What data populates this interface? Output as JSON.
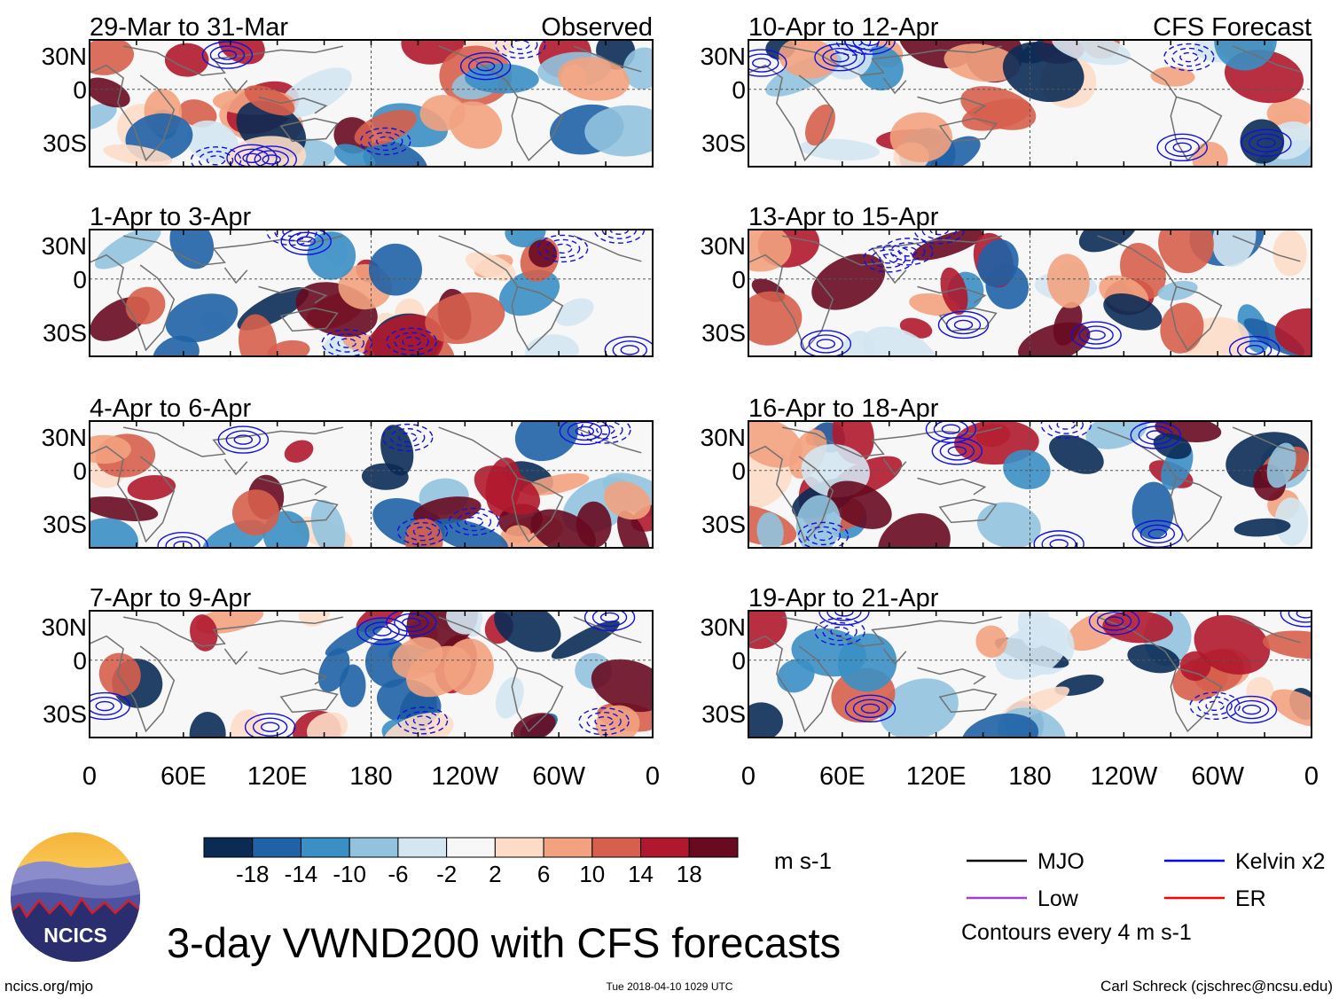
{
  "chart_data": {
    "type": "heatmap",
    "title": "3-day VWND200 with CFS forecasts",
    "variable": "VWND200",
    "panels_left": [
      {
        "title": "29-Mar to 31-Mar",
        "label": "Observed"
      },
      {
        "title": "1-Apr to 3-Apr",
        "label": ""
      },
      {
        "title": "4-Apr to 6-Apr",
        "label": ""
      },
      {
        "title": "7-Apr to 9-Apr",
        "label": ""
      }
    ],
    "panels_right": [
      {
        "title": "10-Apr to 12-Apr",
        "label": "CFS Forecast"
      },
      {
        "title": "13-Apr to 15-Apr",
        "label": ""
      },
      {
        "title": "16-Apr to 18-Apr",
        "label": ""
      },
      {
        "title": "19-Apr to 21-Apr",
        "label": ""
      }
    ],
    "y_tick_labels": [
      "30N",
      "0",
      "30S"
    ],
    "x_tick_labels": [
      "0",
      "60E",
      "120E",
      "180",
      "120W",
      "60W",
      "0"
    ],
    "colorbar": {
      "units": "m s-1",
      "tick_labels": [
        "-18",
        "-14",
        "-10",
        "-6",
        "-2",
        "2",
        "6",
        "10",
        "14",
        "18"
      ],
      "colors": [
        "#0b2b55",
        "#1f62a6",
        "#3a8fc4",
        "#91c3de",
        "#d3e6f1",
        "#f7f7f7",
        "#fcdbc7",
        "#f2a27f",
        "#d65f4d",
        "#b0182d",
        "#680a20"
      ]
    },
    "legend": [
      {
        "label": "MJO",
        "color": "#000000"
      },
      {
        "label": "Kelvin x2",
        "color": "#0000ff"
      },
      {
        "label": "Low",
        "color": "#a040d0"
      },
      {
        "label": "ER",
        "color": "#ff0000"
      }
    ],
    "contour_note": "Contours every 4 m s-1"
  },
  "footer": {
    "logo_text": "NCICS",
    "site": "ncics.org/mjo",
    "timestamp": "Tue 2018-04-10 1029 UTC",
    "author": "Carl Schreck (cjschrec@ncsu.edu)"
  }
}
